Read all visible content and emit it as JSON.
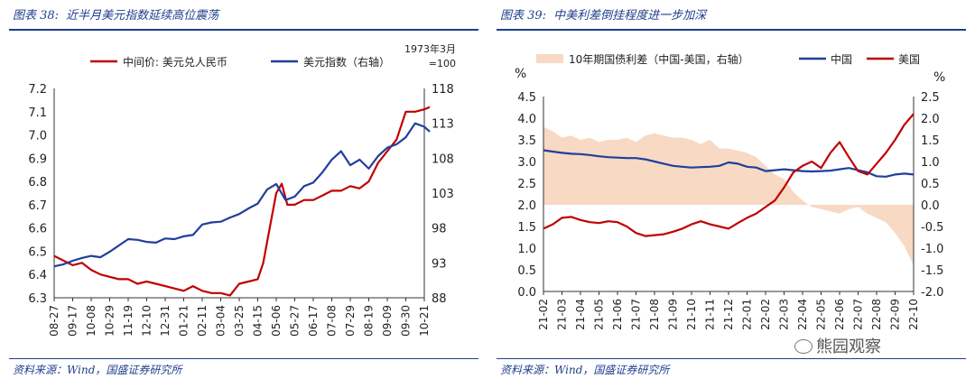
{
  "left": {
    "title_num": "图表 38:",
    "title": "近半月美元指数延续高位震荡",
    "source": "资料来源：Wind，国盛证券研究所",
    "chart_data": {
      "type": "line",
      "legend": [
        "中间价: 美元兑人民币",
        "美元指数（右轴）"
      ],
      "right_axis_note": [
        "1973年3月",
        "=100"
      ],
      "x_ticks": [
        "08-27",
        "09-17",
        "10-08",
        "10-29",
        "11-19",
        "12-10",
        "12-31",
        "01-21",
        "02-11",
        "03-04",
        "03-25",
        "04-15",
        "05-06",
        "05-27",
        "06-17",
        "07-08",
        "07-29",
        "08-19",
        "09-09",
        "09-30",
        "10-21"
      ],
      "y_left": {
        "min": 6.3,
        "max": 7.2,
        "ticks": [
          "6.3",
          "6.4",
          "6.5",
          "6.6",
          "6.7",
          "6.8",
          "6.9",
          "7.0",
          "7.1",
          "7.2"
        ]
      },
      "y_right": {
        "min": 88,
        "max": 118,
        "ticks": [
          "88",
          "93",
          "98",
          "103",
          "108",
          "113",
          "118"
        ]
      },
      "series": [
        {
          "name": "中间价: 美元兑人民币",
          "color": "#c00000",
          "axis": "left",
          "x": [
            0,
            0.5,
            1,
            1.5,
            2,
            2.5,
            3,
            3.5,
            4,
            4.5,
            5,
            5.5,
            6,
            6.5,
            7,
            7.5,
            8,
            8.5,
            9,
            9.5,
            10,
            10.5,
            11,
            11.3,
            11.6,
            12,
            12.3,
            12.6,
            13,
            13.5,
            14,
            14.5,
            15,
            15.5,
            16,
            16.5,
            17,
            17.5,
            18,
            18.5,
            19,
            19.5,
            20,
            20.3
          ],
          "values": [
            6.48,
            6.46,
            6.44,
            6.45,
            6.42,
            6.4,
            6.39,
            6.38,
            6.38,
            6.36,
            6.37,
            6.36,
            6.35,
            6.34,
            6.33,
            6.35,
            6.33,
            6.32,
            6.32,
            6.31,
            6.36,
            6.37,
            6.38,
            6.45,
            6.58,
            6.75,
            6.79,
            6.7,
            6.7,
            6.72,
            6.72,
            6.74,
            6.76,
            6.76,
            6.78,
            6.77,
            6.8,
            6.88,
            6.93,
            6.98,
            7.1,
            7.1,
            7.11,
            7.12
          ]
        },
        {
          "name": "美元指数（右轴）",
          "color": "#1f3f9e",
          "axis": "right",
          "x": [
            0,
            0.5,
            1,
            1.5,
            2,
            2.5,
            3,
            3.5,
            4,
            4.5,
            5,
            5.5,
            6,
            6.5,
            7,
            7.5,
            8,
            8.5,
            9,
            9.5,
            10,
            10.5,
            11,
            11.5,
            12,
            12.5,
            13,
            13.5,
            14,
            14.5,
            15,
            15.5,
            16,
            16.5,
            17,
            17.5,
            18,
            18.5,
            19,
            19.5,
            20,
            20.3
          ],
          "values": [
            92.5,
            92.8,
            93.3,
            93.7,
            94.0,
            93.8,
            94.6,
            95.5,
            96.4,
            96.3,
            96.0,
            95.9,
            96.5,
            96.4,
            96.8,
            97.0,
            98.5,
            98.8,
            98.9,
            99.5,
            100.0,
            100.8,
            101.5,
            103.5,
            104.3,
            102.0,
            102.5,
            104.0,
            104.5,
            106.0,
            107.8,
            109.0,
            107.0,
            107.8,
            106.5,
            108.3,
            109.5,
            110.0,
            111.0,
            113.0,
            112.5,
            111.8
          ]
        }
      ]
    }
  },
  "right": {
    "title_num": "图表 39:",
    "title": "中美利差倒挂程度进一步加深",
    "source": "资料来源：Wind，国盛证券研究所",
    "watermark": "熊园观察",
    "chart_data": {
      "type": "line",
      "legend": [
        "10年期国债利差（中国-美国，右轴）",
        "中国",
        "美国"
      ],
      "y_left_unit": "%",
      "y_right_unit": "%",
      "x_ticks": [
        "21-02",
        "21-03",
        "21-04",
        "21-05",
        "21-06",
        "21-07",
        "21-08",
        "21-09",
        "21-10",
        "21-11",
        "21-12",
        "22-01",
        "22-02",
        "22-03",
        "22-04",
        "22-05",
        "22-06",
        "22-07",
        "22-08",
        "22-09",
        "22-10"
      ],
      "y_left": {
        "min": 0,
        "max": 4.5,
        "ticks": [
          "0.0",
          "0.5",
          "1.0",
          "1.5",
          "2.0",
          "2.5",
          "3.0",
          "3.5",
          "4.0",
          "4.5"
        ]
      },
      "y_right": {
        "min": -2.0,
        "max": 2.5,
        "ticks": [
          "-2.0",
          "-1.5",
          "-1.0",
          "-0.5",
          "0.0",
          "0.5",
          "1.0",
          "1.5",
          "2.0",
          "2.5"
        ]
      },
      "series": [
        {
          "name": "10年期国债利差（中国-美国，右轴）",
          "color": "#f7d9c4",
          "axis": "right",
          "kind": "area",
          "x": [
            0,
            0.5,
            1,
            1.5,
            2,
            2.5,
            3,
            3.5,
            4,
            4.5,
            5,
            5.5,
            6,
            6.5,
            7,
            7.5,
            8,
            8.5,
            9,
            9.5,
            10,
            10.5,
            11,
            11.5,
            12,
            12.5,
            13,
            13.5,
            14,
            14.5,
            15,
            15.5,
            16,
            16.5,
            17,
            17.5,
            18,
            18.5,
            19,
            19.5,
            20
          ],
          "values": [
            1.8,
            1.7,
            1.55,
            1.6,
            1.5,
            1.55,
            1.45,
            1.5,
            1.5,
            1.55,
            1.45,
            1.6,
            1.65,
            1.6,
            1.55,
            1.55,
            1.5,
            1.4,
            1.5,
            1.3,
            1.3,
            1.25,
            1.2,
            1.1,
            0.9,
            0.7,
            0.6,
            0.3,
            0.1,
            -0.05,
            -0.1,
            -0.15,
            -0.2,
            -0.1,
            -0.05,
            -0.2,
            -0.3,
            -0.4,
            -0.65,
            -0.95,
            -1.4
          ]
        },
        {
          "name": "中国",
          "color": "#1f3f9e",
          "axis": "left",
          "x": [
            0,
            0.5,
            1,
            1.5,
            2,
            2.5,
            3,
            3.5,
            4,
            4.5,
            5,
            5.5,
            6,
            6.5,
            7,
            7.5,
            8,
            8.5,
            9,
            9.5,
            10,
            10.5,
            11,
            11.5,
            12,
            12.5,
            13,
            13.5,
            14,
            14.5,
            15,
            15.5,
            16,
            16.5,
            17,
            17.5,
            18,
            18.5,
            19,
            19.5,
            20
          ],
          "values": [
            3.26,
            3.23,
            3.2,
            3.18,
            3.17,
            3.15,
            3.12,
            3.1,
            3.09,
            3.08,
            3.08,
            3.05,
            3.0,
            2.95,
            2.9,
            2.88,
            2.86,
            2.87,
            2.88,
            2.9,
            2.98,
            2.95,
            2.88,
            2.86,
            2.78,
            2.8,
            2.82,
            2.8,
            2.78,
            2.77,
            2.78,
            2.79,
            2.82,
            2.85,
            2.8,
            2.75,
            2.66,
            2.65,
            2.7,
            2.72,
            2.7
          ]
        },
        {
          "name": "美国",
          "color": "#c00000",
          "axis": "left",
          "x": [
            0,
            0.5,
            1,
            1.5,
            2,
            2.5,
            3,
            3.5,
            4,
            4.5,
            5,
            5.5,
            6,
            6.5,
            7,
            7.5,
            8,
            8.5,
            9,
            9.5,
            10,
            10.5,
            11,
            11.5,
            12,
            12.5,
            13,
            13.5,
            14,
            14.5,
            15,
            15.5,
            16,
            16.5,
            17,
            17.5,
            18,
            18.5,
            19,
            19.5,
            20
          ],
          "values": [
            1.45,
            1.55,
            1.7,
            1.72,
            1.65,
            1.6,
            1.58,
            1.62,
            1.6,
            1.5,
            1.35,
            1.28,
            1.3,
            1.32,
            1.38,
            1.45,
            1.55,
            1.62,
            1.55,
            1.5,
            1.45,
            1.58,
            1.7,
            1.8,
            1.95,
            2.1,
            2.4,
            2.75,
            2.9,
            3.0,
            2.85,
            3.2,
            3.45,
            3.1,
            2.78,
            2.7,
            2.95,
            3.2,
            3.5,
            3.85,
            4.1
          ]
        }
      ]
    }
  }
}
